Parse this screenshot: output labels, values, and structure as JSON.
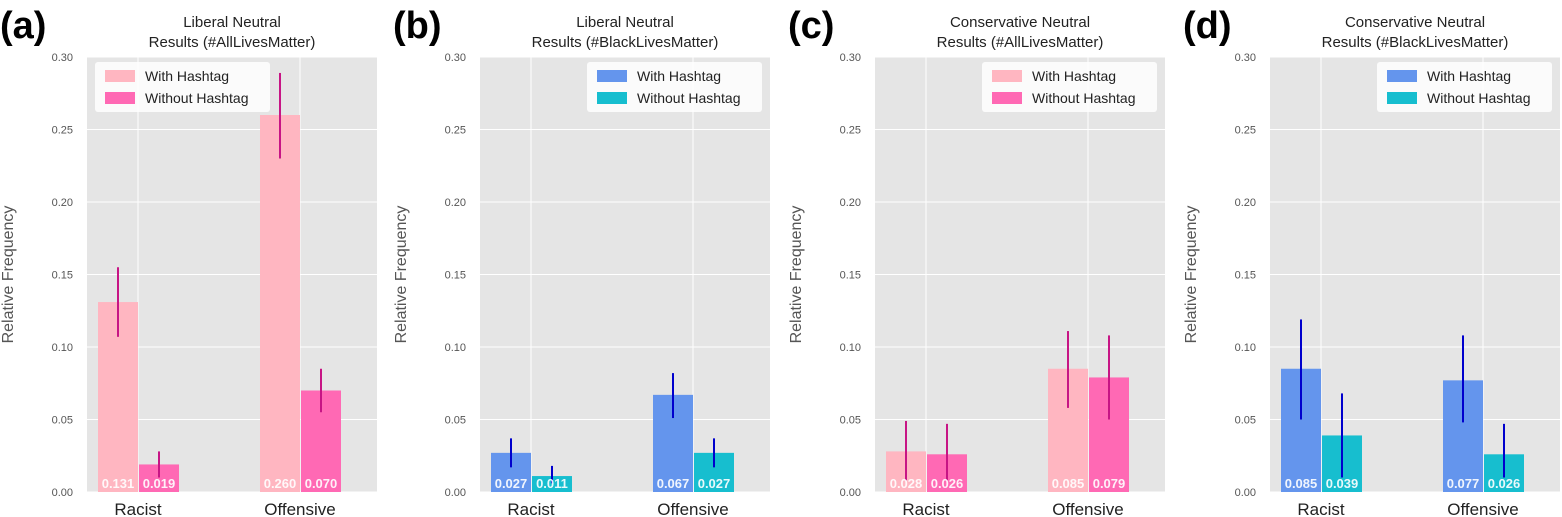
{
  "chart_data": [
    {
      "panel_label": "(a)",
      "type": "bar",
      "title": "Liberal Neutral\nResults (#AllLivesMatter)",
      "ylabel": "Relative Frequency",
      "ylim": [
        0,
        0.3
      ],
      "yticks": [
        "0.00",
        "0.05",
        "0.10",
        "0.15",
        "0.20",
        "0.25",
        "0.30"
      ],
      "categories": [
        "Racist",
        "Offensive"
      ],
      "legend_position": "top-left",
      "grid": true,
      "error_color": "#c71585",
      "series": [
        {
          "name": "With Hashtag",
          "color": "#ffb6c1",
          "values": [
            0.131,
            0.26
          ],
          "labels": [
            "0.131",
            "0.260"
          ],
          "err_low": [
            0.107,
            0.23
          ],
          "err_high": [
            0.155,
            0.289
          ]
        },
        {
          "name": "Without Hashtag",
          "color": "#ff69b4",
          "values": [
            0.019,
            0.07
          ],
          "labels": [
            "0.019",
            "0.070"
          ],
          "err_low": [
            0.01,
            0.055
          ],
          "err_high": [
            0.028,
            0.085
          ]
        }
      ]
    },
    {
      "panel_label": "(b)",
      "type": "bar",
      "title": "Liberal Neutral\nResults (#BlackLivesMatter)",
      "ylabel": "Relative Frequency",
      "ylim": [
        0,
        0.3
      ],
      "yticks": [
        "0.00",
        "0.05",
        "0.10",
        "0.15",
        "0.20",
        "0.25",
        "0.30"
      ],
      "categories": [
        "Racist",
        "Offensive"
      ],
      "legend_position": "top-right",
      "grid": true,
      "error_color": "#0000cd",
      "series": [
        {
          "name": "With Hashtag",
          "color": "#6495ed",
          "values": [
            0.027,
            0.067
          ],
          "labels": [
            "0.027",
            "0.067"
          ],
          "err_low": [
            0.017,
            0.051
          ],
          "err_high": [
            0.037,
            0.082
          ]
        },
        {
          "name": "Without Hashtag",
          "color": "#17becf",
          "values": [
            0.011,
            0.027
          ],
          "labels": [
            "0.011",
            "0.027"
          ],
          "err_low": [
            0.006,
            0.017
          ],
          "err_high": [
            0.018,
            0.037
          ]
        }
      ]
    },
    {
      "panel_label": "(c)",
      "type": "bar",
      "title": "Conservative Neutral\nResults (#AllLivesMatter)",
      "ylabel": "Relative Frequency",
      "ylim": [
        0,
        0.3
      ],
      "yticks": [
        "0.00",
        "0.05",
        "0.10",
        "0.15",
        "0.20",
        "0.25",
        "0.30"
      ],
      "categories": [
        "Racist",
        "Offensive"
      ],
      "legend_position": "top-right",
      "grid": true,
      "error_color": "#c71585",
      "series": [
        {
          "name": "With Hashtag",
          "color": "#ffb6c1",
          "values": [
            0.028,
            0.085
          ],
          "labels": [
            "0.028",
            "0.085"
          ],
          "err_low": [
            0.008,
            0.058
          ],
          "err_high": [
            0.049,
            0.111
          ]
        },
        {
          "name": "Without Hashtag",
          "color": "#ff69b4",
          "values": [
            0.026,
            0.079
          ],
          "labels": [
            "0.026",
            "0.079"
          ],
          "err_low": [
            0.008,
            0.05
          ],
          "err_high": [
            0.047,
            0.108
          ]
        }
      ]
    },
    {
      "panel_label": "(d)",
      "type": "bar",
      "title": "Conservative Neutral\nResults (#BlackLivesMatter)",
      "ylabel": "Relative Frequency",
      "ylim": [
        0,
        0.3
      ],
      "yticks": [
        "0.00",
        "0.05",
        "0.10",
        "0.15",
        "0.20",
        "0.25",
        "0.30"
      ],
      "categories": [
        "Racist",
        "Offensive"
      ],
      "legend_position": "top-right",
      "grid": true,
      "error_color": "#0000cd",
      "series": [
        {
          "name": "With Hashtag",
          "color": "#6495ed",
          "values": [
            0.085,
            0.077
          ],
          "labels": [
            "0.085",
            "0.077"
          ],
          "err_low": [
            0.05,
            0.048
          ],
          "err_high": [
            0.119,
            0.108
          ]
        },
        {
          "name": "Without Hashtag",
          "color": "#17becf",
          "values": [
            0.039,
            0.026
          ],
          "labels": [
            "0.039",
            "0.026"
          ],
          "err_low": [
            0.01,
            0.01
          ],
          "err_high": [
            0.068,
            0.047
          ]
        }
      ]
    }
  ]
}
